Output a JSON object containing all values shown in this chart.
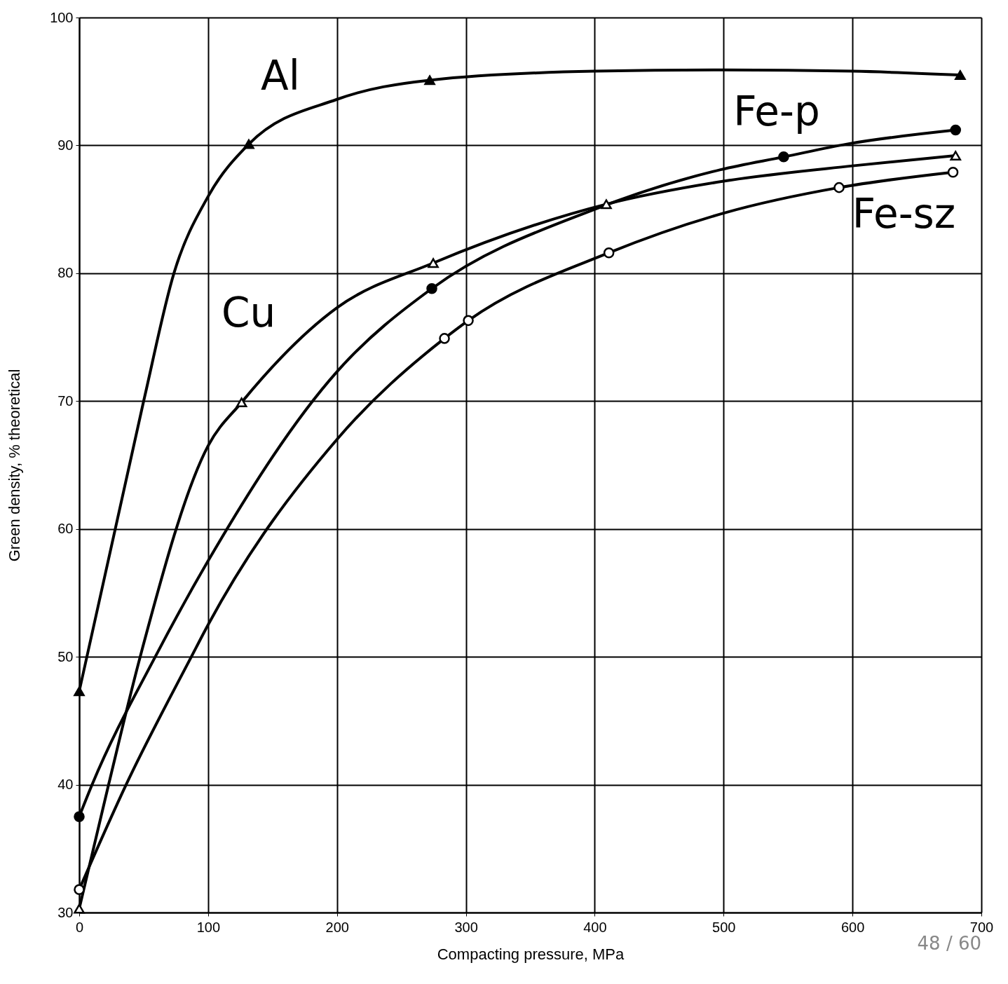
{
  "chart_data": {
    "type": "line",
    "xlabel": "Compacting pressure, MPa",
    "ylabel": "Green density, % theoretical",
    "xlim": [
      0,
      700
    ],
    "xticks": [
      0,
      100,
      200,
      300,
      400,
      500,
      600,
      700
    ],
    "ylim": [
      30,
      100
    ],
    "yticks": [
      30,
      40,
      50,
      60,
      70,
      80,
      90,
      100
    ],
    "grid": true,
    "line_style": "solid",
    "annotations": [
      "48 / 60"
    ],
    "series": [
      {
        "name": "Al",
        "type": "line",
        "marker": "none",
        "color": "#000000",
        "x": [
          0,
          50,
          73.5,
          100,
          131.6,
          200,
          272,
          400,
          500,
          600,
          683.6
        ],
        "values": [
          47.3,
          70,
          80,
          86,
          90.1,
          93.6,
          95.1,
          95.8,
          95.9,
          95.8,
          95.5
        ]
      },
      {
        "name": "Cu",
        "type": "line",
        "marker": "none",
        "color": "#000000",
        "x": [
          0,
          22.8,
          47.3,
          100,
          126,
          200,
          274.7,
          409,
          500,
          600,
          680
        ],
        "values": [
          30.3,
          40,
          50,
          66.5,
          69.9,
          77.3,
          80.8,
          85.4,
          87.2,
          88.4,
          89.2
        ]
      },
      {
        "name": "Fe-p",
        "type": "line",
        "marker": "none",
        "color": "#000000",
        "x": [
          0,
          10,
          59,
          100,
          200,
          273.6,
          400,
          497.6,
          546.6,
          595.6,
          680
        ],
        "values": [
          37.5,
          40,
          50,
          57.5,
          72.3,
          78.8,
          85,
          88.1,
          89.1,
          90.1,
          91.2
        ]
      },
      {
        "name": "Fe-sz",
        "type": "line",
        "marker": "none",
        "color": "#000000",
        "x": [
          0,
          36.4,
          87,
          100,
          200,
          283.4,
          301.9,
          411,
          500,
          589.6,
          678
        ],
        "values": [
          31.8,
          40,
          50,
          52.5,
          67,
          74.9,
          76.3,
          81.6,
          84.7,
          86.7,
          87.9
        ]
      },
      {
        "type": "scatter",
        "marker": "triangle",
        "color": "#000000",
        "x": [
          0,
          131.6,
          272,
          683.6
        ],
        "values": [
          47.3,
          90.1,
          95.1,
          95.5
        ]
      },
      {
        "type": "scatter",
        "marker": "triangle",
        "color": "#ffffff",
        "x": [
          0,
          126,
          274.7,
          409,
          680
        ],
        "values": [
          30.3,
          69.9,
          80.8,
          85.4,
          89.2
        ]
      },
      {
        "type": "scatter",
        "marker": "circle",
        "color": "#000000",
        "x": [
          0,
          273.6,
          546.6,
          680
        ],
        "values": [
          37.5,
          78.8,
          89.1,
          91.2
        ]
      },
      {
        "type": "scatter",
        "marker": "circle",
        "color": "#ffffff",
        "x": [
          0,
          283.4,
          301.9,
          411,
          589.6,
          678
        ],
        "values": [
          31.8,
          74.9,
          76.3,
          81.6,
          86.7,
          87.9
        ]
      }
    ]
  }
}
